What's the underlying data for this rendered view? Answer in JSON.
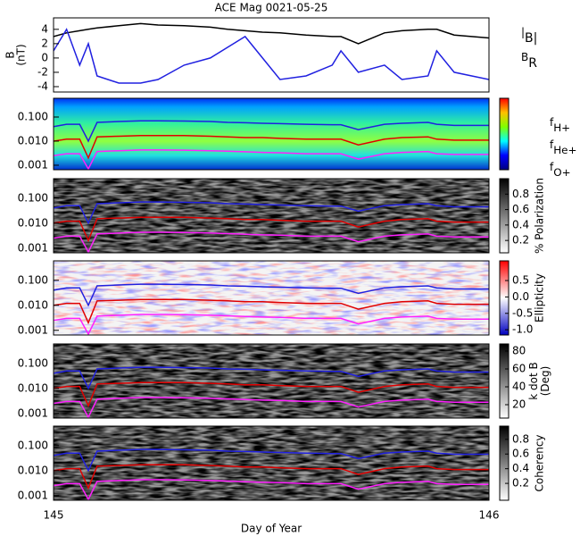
{
  "chart_data": [
    {
      "type": "line",
      "title": "ACE Mag 0021-05-25",
      "ylabel": [
        "B",
        "(nT)"
      ],
      "xlabel": "Day of Year",
      "xlim": [
        145,
        146
      ],
      "xticks": [
        145,
        146
      ],
      "x": [
        145.0,
        145.03,
        145.06,
        145.08,
        145.1,
        145.15,
        145.2,
        145.24,
        145.3,
        145.36,
        145.4,
        145.44,
        145.48,
        145.52,
        145.58,
        145.64,
        145.66,
        145.7,
        145.76,
        145.8,
        145.86,
        145.88,
        145.92,
        146.0
      ],
      "ylim": [
        -4.75,
        5.6
      ],
      "yticks": [
        -4,
        -2,
        0,
        2,
        4
      ],
      "series": [
        {
          "name": "|B|",
          "color": "#000000",
          "values": [
            3.0,
            3.5,
            3.8,
            4.0,
            4.2,
            4.5,
            4.8,
            4.6,
            4.5,
            4.3,
            4.0,
            3.8,
            3.6,
            3.5,
            3.2,
            3.0,
            3.0,
            2.0,
            3.5,
            3.8,
            4.0,
            4.0,
            3.2,
            2.8
          ]
        },
        {
          "name": "BR",
          "color": "#2020e0",
          "values": [
            1.0,
            4.0,
            -1.0,
            2.0,
            -2.5,
            -3.5,
            -3.5,
            -3.0,
            -1.0,
            0.0,
            1.5,
            3.0,
            0.0,
            -3.0,
            -2.5,
            -1.0,
            1.0,
            -2.0,
            -1.0,
            -3.0,
            -2.5,
            1.0,
            -2.0,
            -3.0
          ]
        }
      ]
    },
    {
      "type": "spectrogram",
      "colormap": "jet",
      "log_y": true,
      "ylim": [
        0.00065,
        0.6
      ],
      "yticks": [
        {
          "value": 0.1,
          "label": "0.100"
        },
        {
          "value": 0.01,
          "label": "0.010"
        },
        0.001
      ],
      "series": [
        {
          "name": "fH+",
          "color": "#2020e0",
          "values": [
            0.04,
            0.05,
            0.05,
            0.01,
            0.06,
            0.065,
            0.07,
            0.07,
            0.068,
            0.065,
            0.06,
            0.058,
            0.055,
            0.053,
            0.05,
            0.048,
            0.048,
            0.03,
            0.05,
            0.055,
            0.06,
            0.05,
            0.045,
            0.045
          ]
        },
        {
          "name": "fHe+",
          "color": "#e00000",
          "values": [
            0.01,
            0.012,
            0.012,
            0.002,
            0.015,
            0.016,
            0.017,
            0.017,
            0.017,
            0.016,
            0.015,
            0.014,
            0.014,
            0.013,
            0.012,
            0.012,
            0.012,
            0.007,
            0.012,
            0.014,
            0.015,
            0.012,
            0.011,
            0.011
          ]
        },
        {
          "name": "fO+",
          "color": "#ff20ff",
          "values": [
            0.0025,
            0.003,
            0.003,
            0.0007,
            0.0037,
            0.004,
            0.0043,
            0.0043,
            0.0042,
            0.004,
            0.0038,
            0.0036,
            0.0034,
            0.0033,
            0.003,
            0.003,
            0.003,
            0.0018,
            0.003,
            0.0034,
            0.0037,
            0.003,
            0.0028,
            0.0028
          ]
        }
      ]
    },
    {
      "type": "spectrogram",
      "colormap": "gray",
      "log_y": true,
      "ylim": [
        0.00065,
        0.6
      ],
      "yticks": [
        {
          "value": 0.1,
          "label": "0.100"
        },
        {
          "value": 0.01,
          "label": "0.010"
        },
        0.001
      ],
      "colorbar": {
        "label": [
          "% Polarization"
        ],
        "lim": [
          0.04,
          1.0
        ],
        "ticks": [
          0.2,
          0.4,
          0.6,
          0.8
        ]
      }
    },
    {
      "type": "spectrogram",
      "colormap": "redblue",
      "log_y": true,
      "ylim": [
        0.00065,
        0.6
      ],
      "yticks": [
        {
          "value": 0.1,
          "label": "0.100"
        },
        {
          "value": 0.01,
          "label": "0.010"
        },
        0.001
      ],
      "colorbar": {
        "label": [
          "Ellipticity"
        ],
        "lim": [
          -1.16,
          1.1
        ],
        "ticks": [
          {
            "value": -1,
            "label": "-1.0"
          },
          -0.5,
          {
            "value": 0,
            "label": "0.0"
          },
          0.5
        ]
      }
    },
    {
      "type": "spectrogram",
      "colormap": "gray",
      "log_y": true,
      "ylim": [
        0.00065,
        0.6
      ],
      "yticks": [
        {
          "value": 0.1,
          "label": "0.100"
        },
        {
          "value": 0.01,
          "label": "0.010"
        },
        0.001
      ],
      "colorbar": {
        "label": [
          "k dot B",
          "(Deg)"
        ],
        "lim": [
          5,
          88
        ],
        "ticks": [
          20,
          40,
          60,
          80
        ]
      }
    },
    {
      "type": "spectrogram",
      "colormap": "gray",
      "log_y": true,
      "ylim": [
        0.00065,
        0.6
      ],
      "yticks": [
        {
          "value": 0.1,
          "label": "0.100"
        },
        {
          "value": 0.01,
          "label": "0.010"
        },
        0.001
      ],
      "colorbar": {
        "label": [
          "Coherency"
        ],
        "lim": [
          -0.03,
          0.98
        ],
        "ticks": [
          0.2,
          0.4,
          0.6,
          0.8
        ]
      }
    }
  ]
}
